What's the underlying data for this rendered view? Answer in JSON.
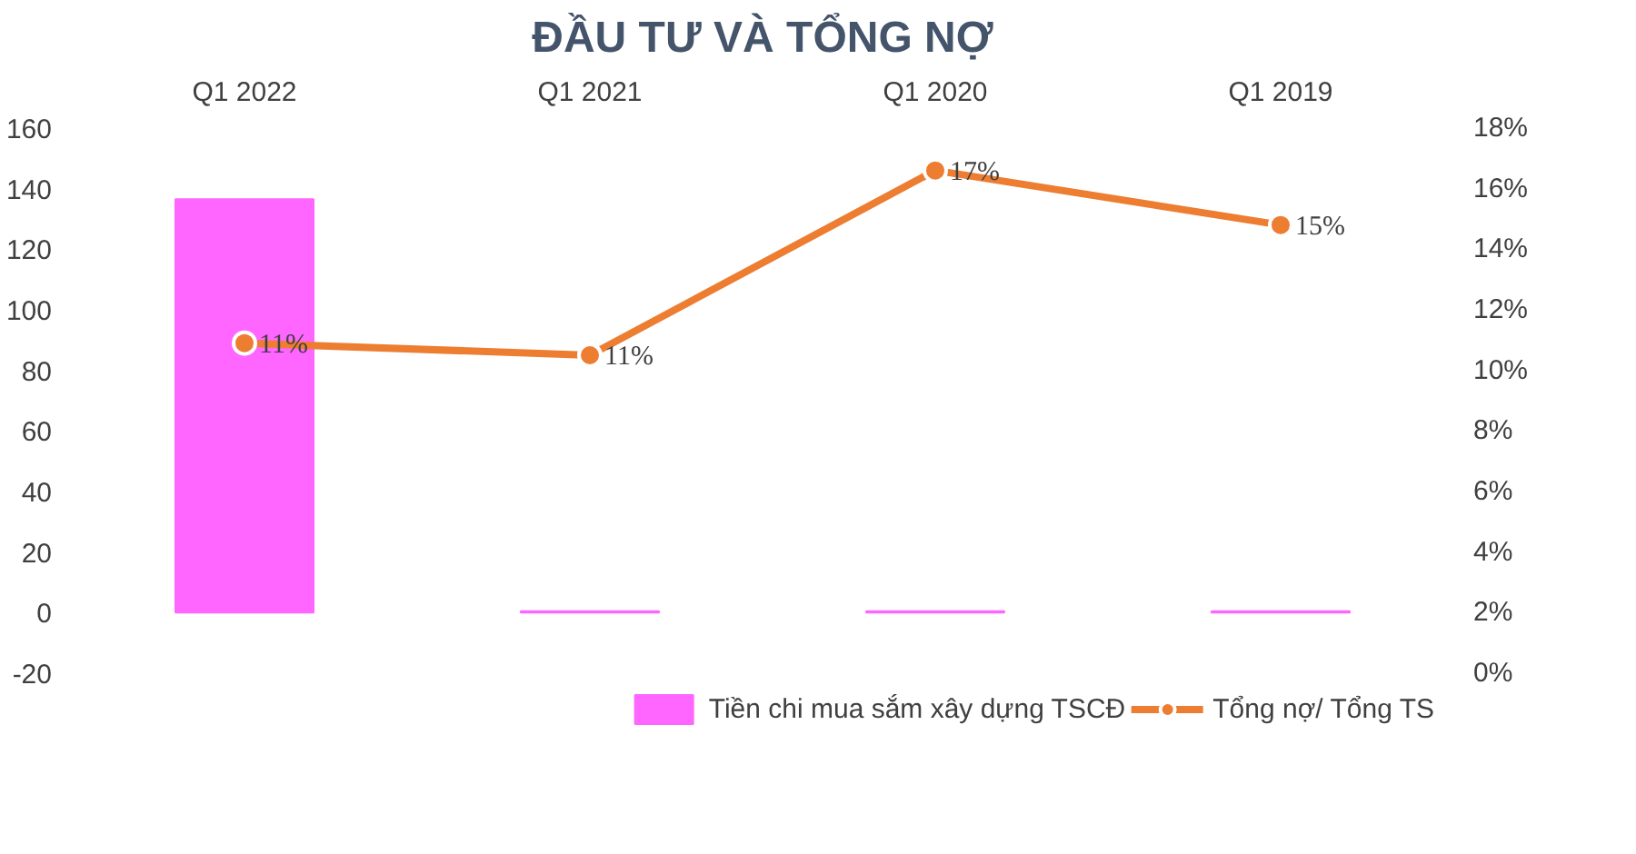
{
  "chart_data": {
    "type": "bar",
    "title": "ĐẦU TƯ VÀ TỔNG NỢ",
    "categories": [
      "Q1 2022",
      "Q1 2021",
      "Q1 2020",
      "Q1 2019"
    ],
    "series": [
      {
        "name": "Tiền chi mua sắm xây dựng TSCĐ",
        "color": "#ff66ff",
        "values": [
          136.5,
          0.5,
          0.5,
          0.5
        ]
      },
      {
        "name": "Tổng nợ/ Tổng TS",
        "type": "line",
        "axis": "y2",
        "color": "#ed7d31",
        "values": [
          10.9,
          10.5,
          16.6,
          14.8
        ],
        "value_labels": [
          "11%",
          "11%",
          "17%",
          "15%"
        ],
        "marker": "circle"
      }
    ],
    "ylim": [
      -20,
      160
    ],
    "yticks": [
      -20,
      0,
      20,
      40,
      60,
      80,
      100,
      120,
      140,
      160
    ],
    "y2lim": [
      0,
      18
    ],
    "y2ticks": [
      {
        "value": 0,
        "label": "0%"
      },
      {
        "value": 2,
        "label": "2%"
      },
      {
        "value": 4,
        "label": "4%"
      },
      {
        "value": 6,
        "label": "6%"
      },
      {
        "value": 8,
        "label": "8%"
      },
      {
        "value": 10,
        "label": "10%"
      },
      {
        "value": 12,
        "label": "12%"
      },
      {
        "value": 14,
        "label": "14%"
      },
      {
        "value": 16,
        "label": "16%"
      },
      {
        "value": 18,
        "label": "18%"
      }
    ],
    "grid": false,
    "legend": "bottom"
  }
}
